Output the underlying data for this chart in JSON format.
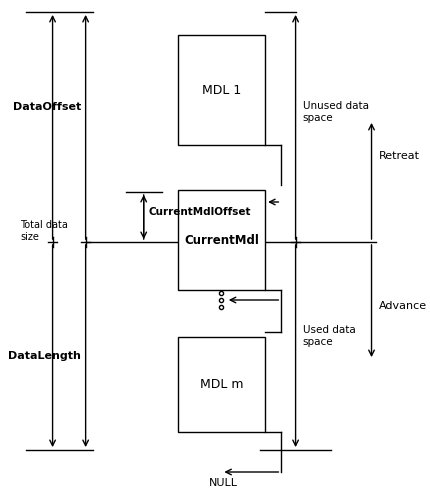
{
  "bg_color": "#ffffff",
  "fg_color": "#000000",
  "mdl1_label": "MDL 1",
  "currentmdl_label": "CurrentMdl",
  "mdlm_label": "MDL m",
  "null_label": "NULL",
  "dataoffset_label": "DataOffset",
  "datalength_label": "DataLength",
  "currentmdloffset_label": "CurrentMdlOffset",
  "unused_label": "Unused data\nspace",
  "used_label": "Used data\nspace",
  "retreat_label": "Retreat",
  "advance_label": "Advance",
  "total_label": "Total data\nsize"
}
